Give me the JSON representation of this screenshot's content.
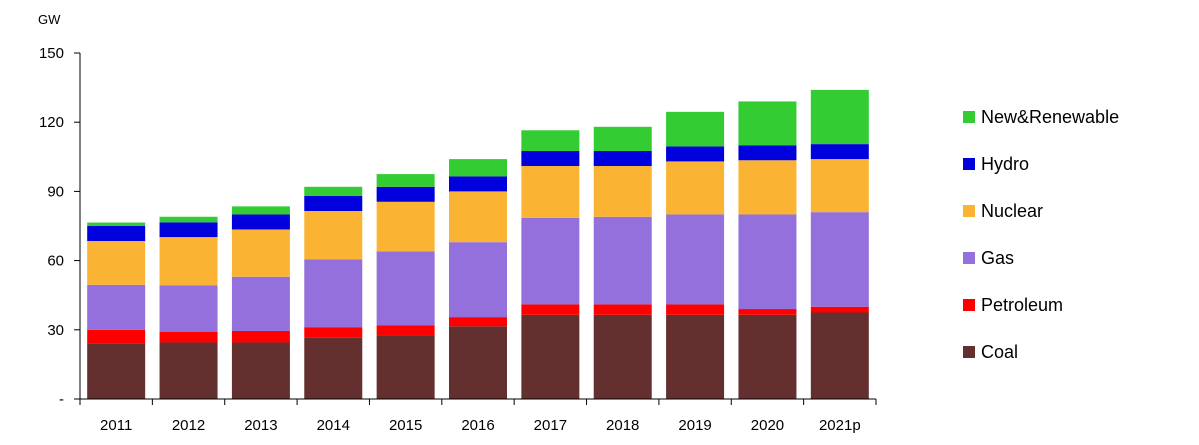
{
  "chart_data": {
    "type": "bar",
    "stacked": true,
    "ylabel": "GW",
    "ylim": [
      0,
      150
    ],
    "yticks": [
      {
        "value": 0,
        "label": "-"
      },
      {
        "value": 30,
        "label": "30"
      },
      {
        "value": 60,
        "label": "60"
      },
      {
        "value": 90,
        "label": "90"
      },
      {
        "value": 120,
        "label": "120"
      },
      {
        "value": 150,
        "label": "150"
      }
    ],
    "grid": false,
    "legend_position": "right",
    "categories": [
      "2011",
      "2012",
      "2013",
      "2014",
      "2015",
      "2016",
      "2017",
      "2018",
      "2019",
      "2020",
      "2021p"
    ],
    "series": [
      {
        "name": "Coal",
        "color": "#632f2f",
        "values": [
          24.2,
          24.5,
          24.5,
          26.5,
          27.5,
          31.5,
          36.5,
          36.5,
          36.5,
          36.5,
          37.5
        ]
      },
      {
        "name": "Petroleum",
        "color": "#ff0000",
        "values": [
          5.8,
          4.7,
          5.0,
          4.5,
          4.5,
          4.0,
          4.5,
          4.5,
          4.5,
          2.5,
          2.5
        ]
      },
      {
        "name": "Gas",
        "color": "#9370db",
        "values": [
          19.5,
          20.0,
          23.5,
          29.5,
          32.0,
          32.5,
          37.5,
          38.0,
          39.0,
          41.0,
          41.0
        ]
      },
      {
        "name": "Nuclear",
        "color": "#fbb333",
        "values": [
          19.0,
          21.0,
          20.5,
          21.0,
          21.5,
          22.0,
          22.5,
          22.0,
          23.0,
          23.5,
          23.0
        ]
      },
      {
        "name": "Hydro",
        "color": "#0000dd",
        "values": [
          6.5,
          6.4,
          6.5,
          6.5,
          6.5,
          6.5,
          6.5,
          6.5,
          6.5,
          6.5,
          6.5
        ]
      },
      {
        "name": "New&Renewable",
        "color": "#33cc33",
        "values": [
          1.5,
          2.4,
          3.5,
          4.0,
          5.5,
          7.5,
          9.0,
          10.5,
          15.0,
          19.0,
          23.5
        ]
      }
    ]
  }
}
